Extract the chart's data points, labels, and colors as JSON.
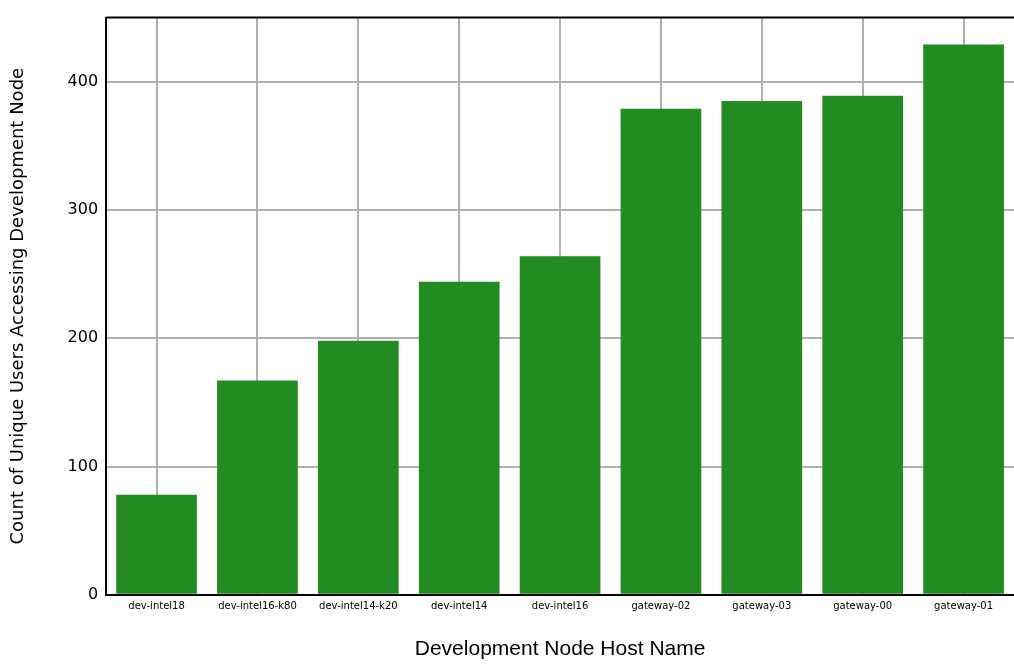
{
  "chart_data": {
    "type": "bar",
    "xlabel": "Development Node Host Name",
    "ylabel": "Count of Unique Users Accessing Development Node",
    "categories": [
      "dev-intel18",
      "dev-intel16-k80",
      "dev-intel14-k20",
      "dev-intel14",
      "dev-intel16",
      "gateway-02",
      "gateway-03",
      "gateway-00",
      "gateway-01"
    ],
    "values": [
      78,
      167,
      198,
      244,
      264,
      379,
      385,
      389,
      429
    ],
    "color": "#228b22",
    "ylim": [
      0,
      450
    ],
    "yticks": [
      0,
      100,
      200,
      300,
      400
    ],
    "grid": true
  }
}
